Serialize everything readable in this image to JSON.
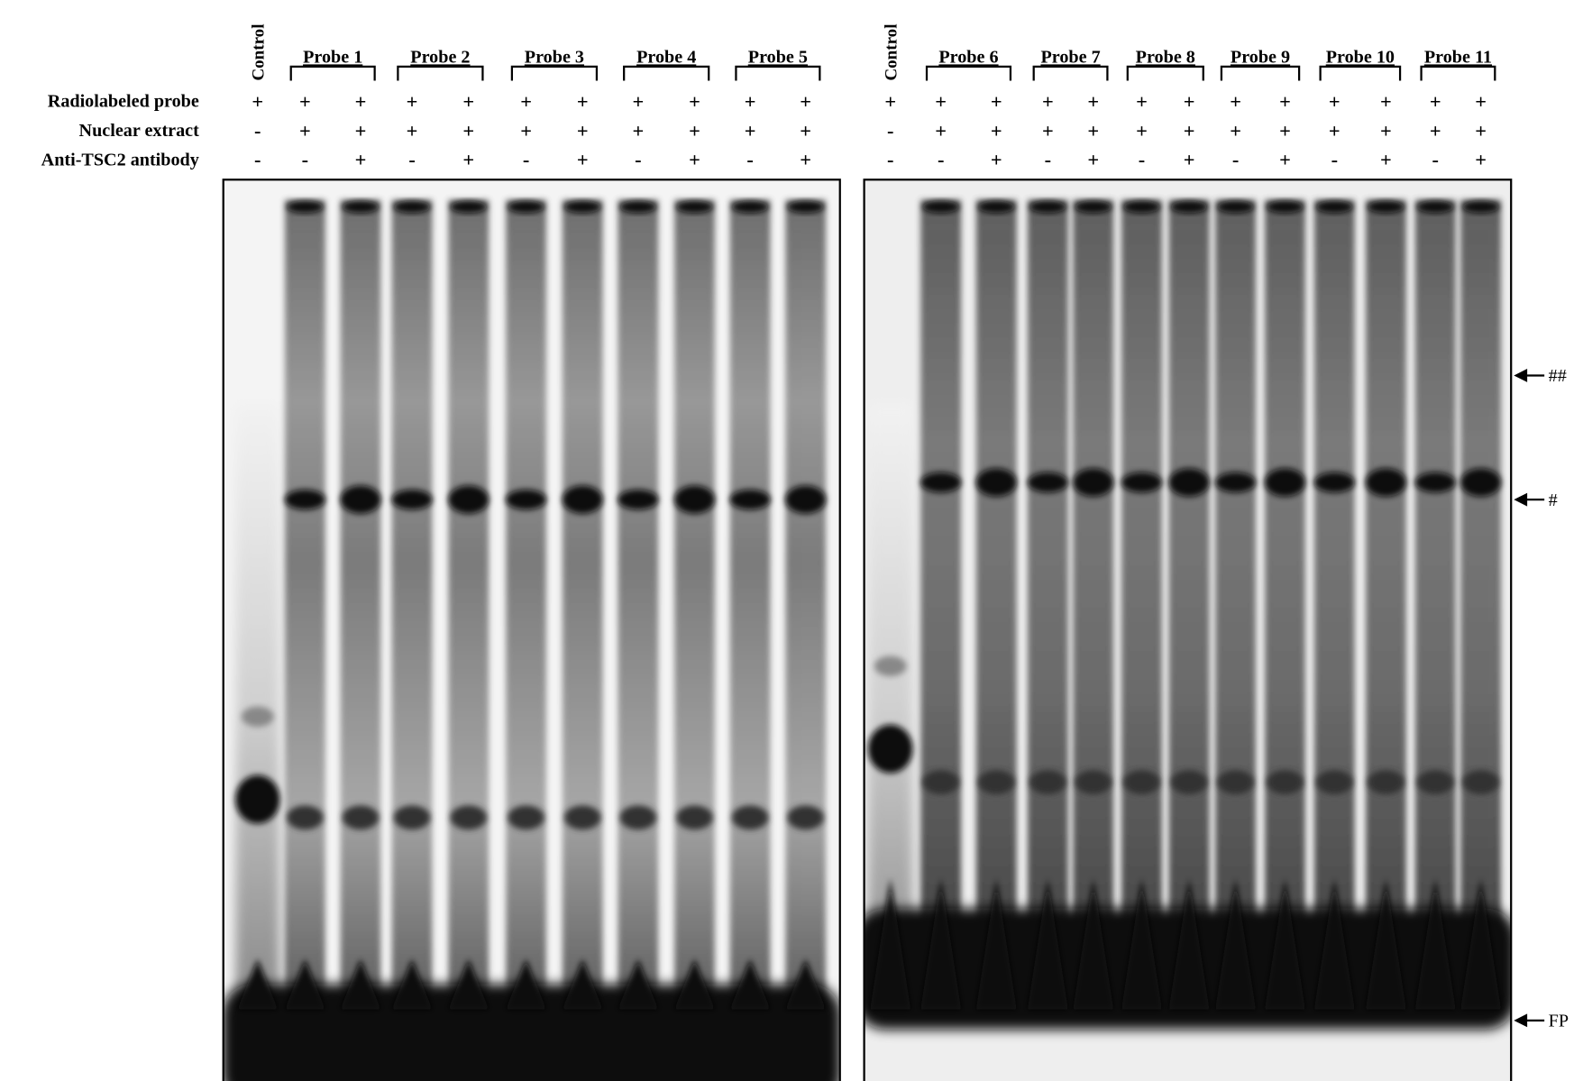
{
  "row_labels": [
    "Radiolabeled probe",
    "Nuclear extract",
    "Anti-TSC2 antibody"
  ],
  "panels": [
    {
      "control": "Control",
      "probes": [
        "Probe 1",
        "Probe 2",
        "Probe 3",
        "Probe 4",
        "Probe 5"
      ],
      "lanes": [
        [
          "+",
          "-",
          "-"
        ],
        [
          "+",
          "+",
          "-"
        ],
        [
          "+",
          "+",
          "+"
        ],
        [
          "+",
          "+",
          "-"
        ],
        [
          "+",
          "+",
          "+"
        ],
        [
          "+",
          "+",
          "-"
        ],
        [
          "+",
          "+",
          "+"
        ],
        [
          "+",
          "+",
          "-"
        ],
        [
          "+",
          "+",
          "+"
        ],
        [
          "+",
          "+",
          "-"
        ],
        [
          "+",
          "+",
          "+"
        ]
      ]
    },
    {
      "control": "Control",
      "probes": [
        "Probe 6",
        "Probe 7",
        "Probe 8",
        "Probe 9",
        "Probe 10",
        "Probe 11"
      ],
      "lanes": [
        [
          "+",
          "-",
          "-"
        ],
        [
          "+",
          "+",
          "-"
        ],
        [
          "+",
          "+",
          "+"
        ],
        [
          "+",
          "+",
          "-"
        ],
        [
          "+",
          "+",
          "+"
        ],
        [
          "+",
          "+",
          "-"
        ],
        [
          "+",
          "+",
          "+"
        ],
        [
          "+",
          "+",
          "-"
        ],
        [
          "+",
          "+",
          "+"
        ],
        [
          "+",
          "+",
          "-"
        ],
        [
          "+",
          "+",
          "+"
        ],
        [
          "+",
          "+",
          "-"
        ],
        [
          "+",
          "+",
          "+"
        ]
      ]
    }
  ],
  "markers": [
    "##",
    "#",
    "FP"
  ]
}
